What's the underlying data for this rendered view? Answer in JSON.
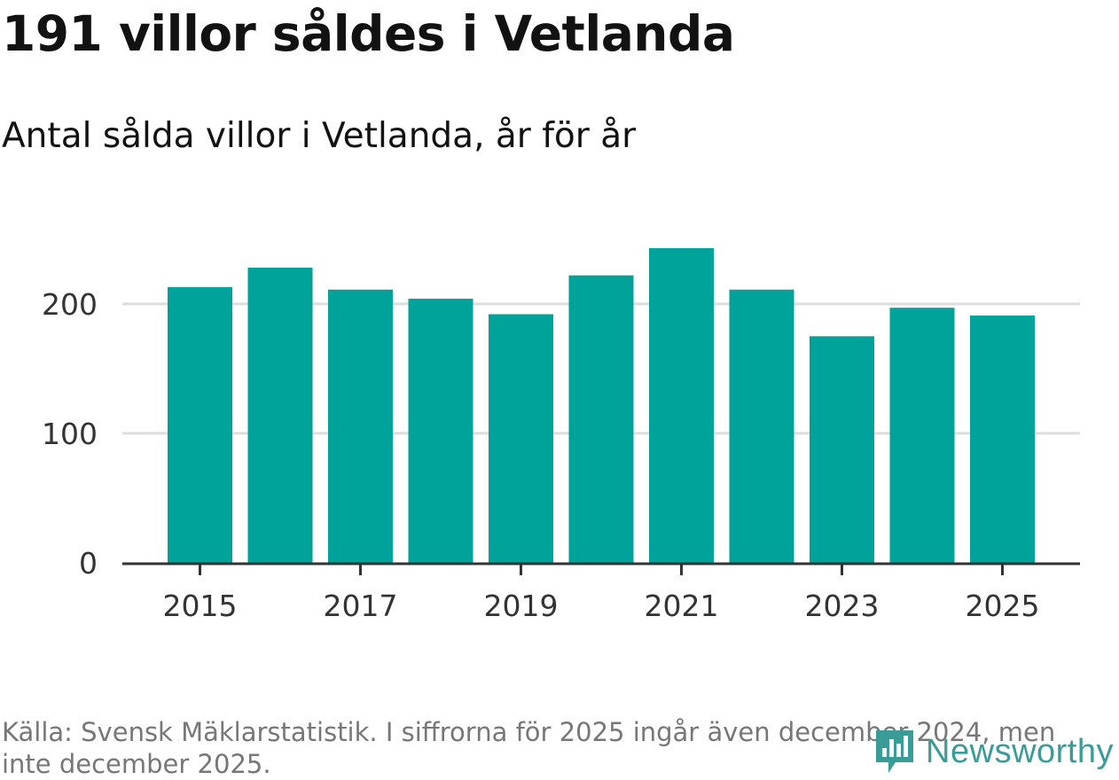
{
  "header": {
    "title": "191 villor såldes i Vetlanda",
    "subtitle": "Antal sålda villor i Vetlanda, år för år"
  },
  "footer": {
    "source": "Källa: Svensk Mäklarstatistik. I siffrorna för 2025 ingår även december 2024, men inte december 2025.",
    "logo_text": "Newsworthy"
  },
  "colors": {
    "bar": "#00a39a",
    "grid": "#dddddd",
    "axis": "#333333",
    "tick_text": "#333333",
    "logo": "#3a9c96"
  },
  "chart_data": {
    "type": "bar",
    "title": "191 villor såldes i Vetlanda",
    "subtitle": "Antal sålda villor i Vetlanda, år för år",
    "xlabel": "",
    "ylabel": "",
    "categories": [
      "2015",
      "2016",
      "2017",
      "2018",
      "2019",
      "2020",
      "2021",
      "2022",
      "2023",
      "2024",
      "2025"
    ],
    "values": [
      213,
      228,
      211,
      204,
      192,
      222,
      243,
      211,
      175,
      197,
      191
    ],
    "ylim": [
      0,
      243
    ],
    "yticks": [
      0,
      100,
      200
    ],
    "xticks": [
      "2015",
      "2017",
      "2019",
      "2021",
      "2023",
      "2025"
    ],
    "grid": true,
    "legend": "none"
  }
}
